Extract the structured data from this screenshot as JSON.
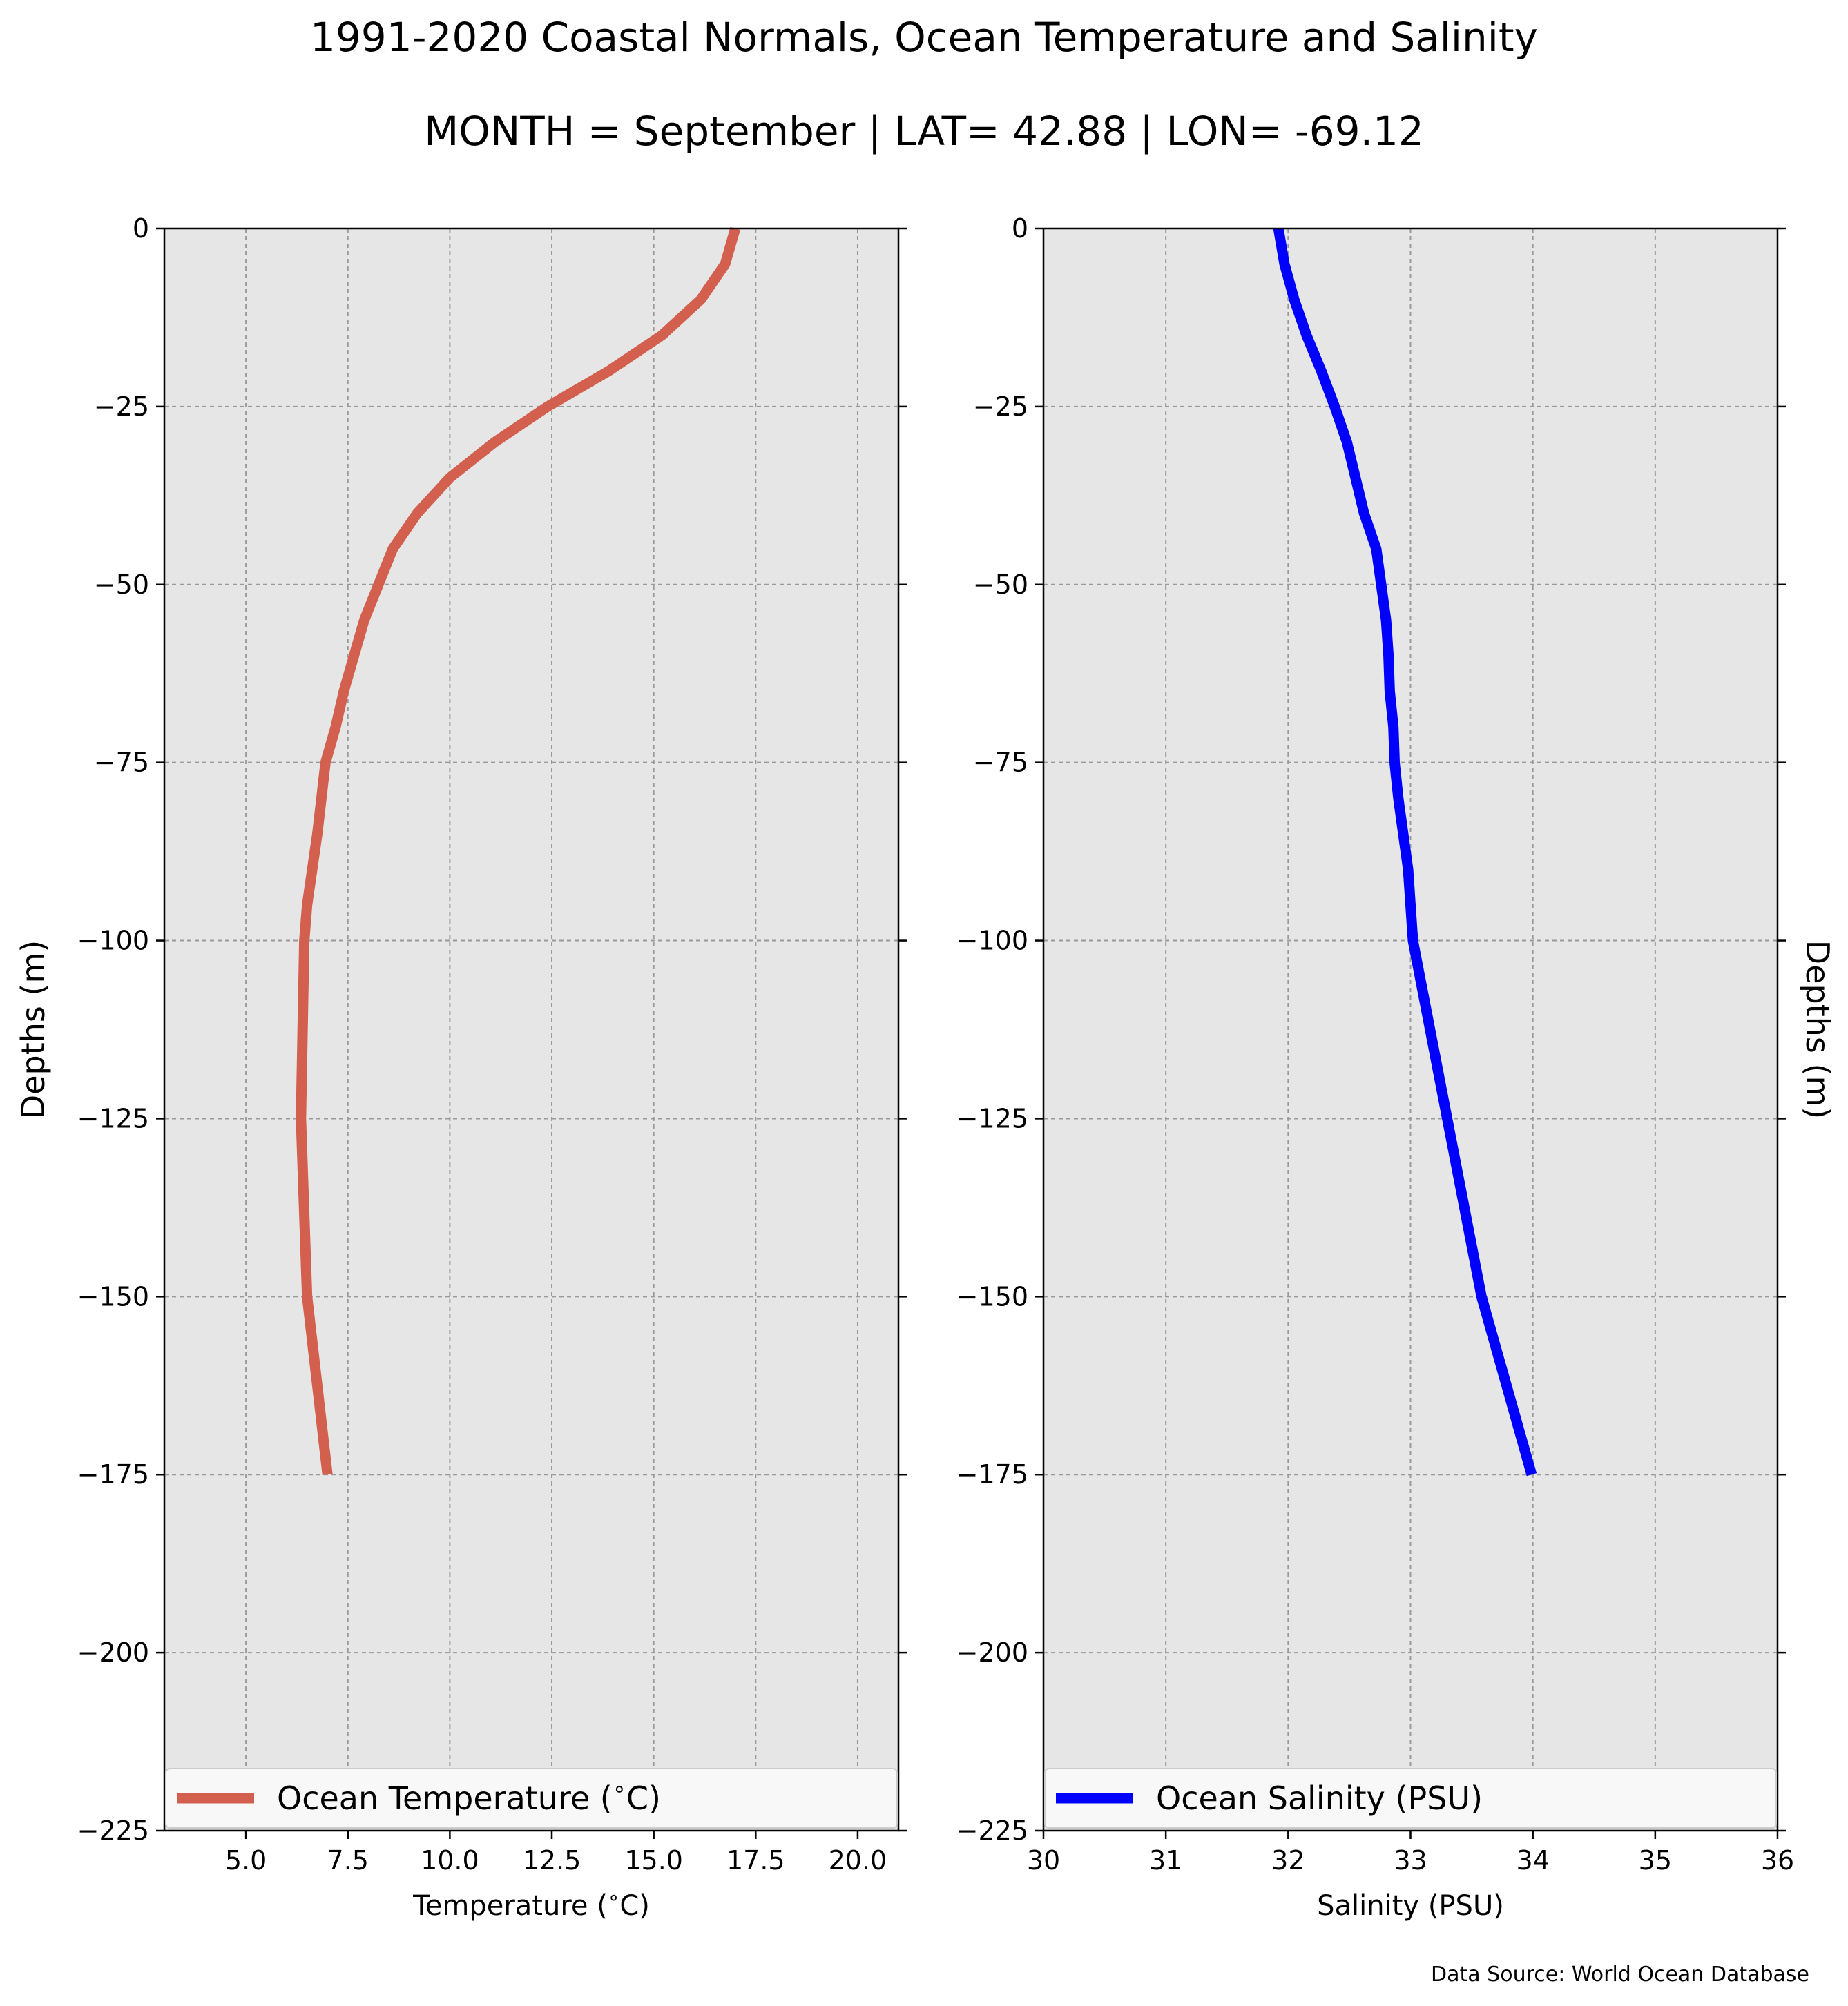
{
  "chart": {
    "title": "1991-2020 Coastal Normals, Ocean Temperature and Salinity",
    "subtitle": "MONTH = September | LAT= 42.88 | LON= -69.12",
    "source": "Data Source: World Ocean Database",
    "background": "#e6e6e6",
    "grid_color": "#9a9a9a"
  },
  "chart_data": [
    {
      "type": "line",
      "title": "",
      "xlabel": "Temperature ($^\\circ$C)",
      "ylabel": "Depths (m)",
      "ylabel_side": "left",
      "xlim": [
        3.0,
        21.0
      ],
      "ylim": [
        -225,
        0
      ],
      "x_ticks": [
        5.0,
        7.5,
        10.0,
        12.5,
        15.0,
        17.5,
        20.0
      ],
      "x_tick_labels": [
        "5.0",
        "7.5",
        "10.0",
        "12.5",
        "15.0",
        "17.5",
        "20.0"
      ],
      "y_ticks": [
        0,
        -25,
        -50,
        -75,
        -100,
        -125,
        -150,
        -175,
        -200,
        -225
      ],
      "y_tick_labels": [
        "0",
        "−25",
        "−50",
        "−75",
        "−100",
        "−125",
        "−150",
        "−175",
        "−200",
        "−225"
      ],
      "grid": true,
      "legend_position": "lower-center",
      "series": [
        {
          "name": "Ocean Temperature ($^\\circ$C)",
          "color": "#d35f4e",
          "x": [
            17.0,
            16.75,
            16.15,
            15.2,
            13.9,
            12.4,
            11.1,
            10.0,
            9.2,
            8.6,
            7.9,
            7.4,
            7.2,
            6.95,
            6.75,
            6.5,
            6.43,
            6.35,
            6.5,
            6.7,
            7.0
          ],
          "y": [
            0,
            -5,
            -10,
            -15,
            -20,
            -25,
            -30,
            -35,
            -40,
            -45,
            -55,
            -65,
            -70,
            -75,
            -85,
            -95,
            -100,
            -125,
            -150,
            -160,
            -175
          ]
        }
      ]
    },
    {
      "type": "line",
      "title": "",
      "xlabel": "Salinity (PSU)",
      "ylabel": "Depths (m)",
      "ylabel_side": "right",
      "xlim": [
        30,
        36
      ],
      "ylim": [
        -225,
        0
      ],
      "x_ticks": [
        30,
        31,
        32,
        33,
        34,
        35,
        36
      ],
      "x_tick_labels": [
        "30",
        "31",
        "32",
        "33",
        "34",
        "35",
        "36"
      ],
      "y_ticks": [
        0,
        -25,
        -50,
        -75,
        -100,
        -125,
        -150,
        -175,
        -200,
        -225
      ],
      "y_tick_labels": [
        "0",
        "−25",
        "−50",
        "−75",
        "−100",
        "−125",
        "−150",
        "−175",
        "−200",
        "−225"
      ],
      "grid": true,
      "legend_position": "lower-center",
      "series": [
        {
          "name": "Ocean Salinity (PSU)",
          "color": "#0000ff",
          "x": [
            31.92,
            31.97,
            32.05,
            32.15,
            32.27,
            32.38,
            32.48,
            32.55,
            32.62,
            32.72,
            32.76,
            32.8,
            32.82,
            32.83,
            32.86,
            32.87,
            32.9,
            32.94,
            32.98,
            33.02,
            33.3,
            33.58,
            33.99
          ],
          "y": [
            0,
            -5,
            -10,
            -15,
            -20,
            -25,
            -30,
            -35,
            -40,
            -45,
            -50,
            -55,
            -60,
            -65,
            -70,
            -75,
            -80,
            -85,
            -90,
            -100,
            -125,
            -150,
            -175
          ]
        }
      ]
    }
  ]
}
